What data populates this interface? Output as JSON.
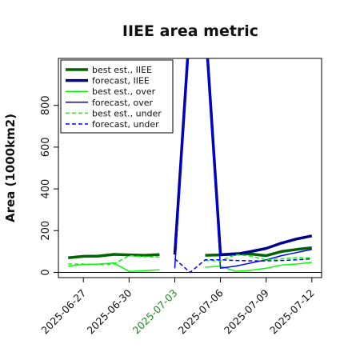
{
  "chart_data": {
    "type": "line",
    "title": "IIEE area metric",
    "xlabel": "",
    "ylabel": "Area (1000km2)",
    "x_ticks": [
      "2025-06-27",
      "2025-06-30",
      "2025-07-03",
      "2025-07-06",
      "2025-07-09",
      "2025-07-12"
    ],
    "highlight_tick": "2025-07-03",
    "highlight_color": "#228b22",
    "ylim": [
      -25,
      1025
    ],
    "yticks": [
      0,
      200,
      400,
      600,
      800
    ],
    "x_dates": [
      "2025-06-26",
      "2025-06-27",
      "2025-06-28",
      "2025-06-29",
      "2025-06-30",
      "2025-07-01",
      "2025-07-02",
      "2025-07-03",
      "2025-07-04",
      "2025-07-05",
      "2025-07-06",
      "2025-07-07",
      "2025-07-08",
      "2025-07-09",
      "2025-07-10",
      "2025-07-11",
      "2025-07-12"
    ],
    "reference_line": 0,
    "legend_position": "top-left",
    "grid": false,
    "series": [
      {
        "name": "best est., IIEE",
        "color": "#006400",
        "width": 3.5,
        "dash": "",
        "values": [
          70,
          77,
          78,
          86,
          84,
          82,
          85,
          null,
          null,
          82,
          84,
          90,
          88,
          80,
          100,
          110,
          118
        ]
      },
      {
        "name": "forecast, IIEE",
        "color": "#00008b",
        "width": 3.5,
        "dash": "",
        "values": [
          null,
          null,
          null,
          null,
          null,
          null,
          null,
          85,
          1200,
          1200,
          85,
          87,
          100,
          115,
          140,
          160,
          175
        ]
      },
      {
        "name": "best est., over",
        "color": "#00ff00",
        "width": 1.5,
        "dash": "",
        "values": [
          30,
          38,
          40,
          45,
          5,
          8,
          12,
          null,
          null,
          25,
          30,
          5,
          10,
          20,
          35,
          40,
          48
        ]
      },
      {
        "name": "forecast, over",
        "color": "#0000ff",
        "width": 1.5,
        "dash": "",
        "values": [
          null,
          null,
          null,
          null,
          null,
          null,
          null,
          20,
          1200,
          1200,
          20,
          30,
          45,
          60,
          80,
          95,
          110
        ]
      },
      {
        "name": "best est., under",
        "color": "#00ff00",
        "width": 1.5,
        "dash": "5,3",
        "values": [
          40,
          40,
          38,
          40,
          80,
          75,
          73,
          null,
          null,
          57,
          55,
          85,
          78,
          60,
          65,
          70,
          70
        ]
      },
      {
        "name": "forecast, under",
        "color": "#0000ff",
        "width": 1.5,
        "dash": "5,3",
        "values": [
          null,
          null,
          null,
          null,
          null,
          null,
          null,
          65,
          0,
          60,
          60,
          57,
          55,
          55,
          57,
          60,
          65
        ]
      }
    ]
  }
}
